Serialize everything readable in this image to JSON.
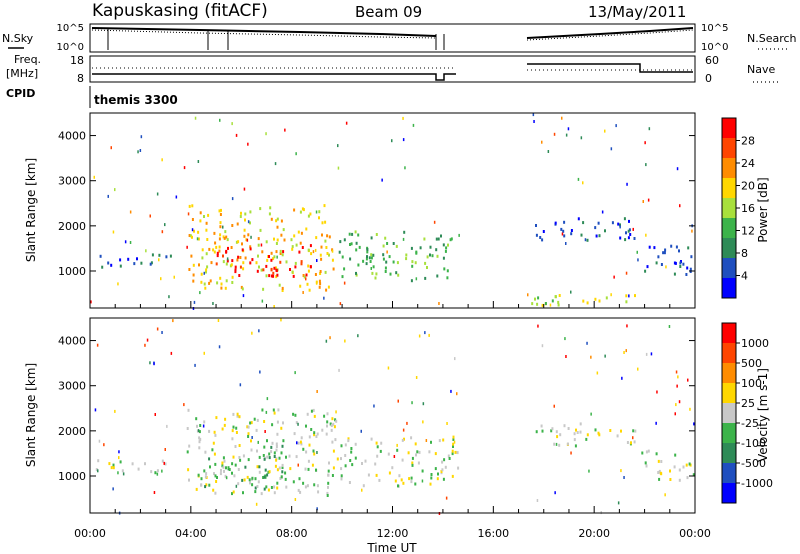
{
  "header": {
    "radar": "Kapuskasing (fitACF)",
    "beam": "Beam 09",
    "date": "13/May/2011"
  },
  "labels": {
    "nsky": "N.Sky",
    "nsearch": "N.Search",
    "freq_line1": "Freq.",
    "freq_line2": "[MHz]",
    "nave": "Nave",
    "cpid": "CPID",
    "program": "themis 3300"
  },
  "noise_axis": {
    "left_ticks": [
      "10^5",
      "10^0"
    ],
    "right_ticks": [
      "10^5",
      "10^0"
    ]
  },
  "freq_axis": {
    "left_ticks": [
      "18",
      "8"
    ],
    "right_ticks": [
      "60",
      "0"
    ]
  },
  "chart_data": [
    {
      "type": "heatmap",
      "panel": "power",
      "ylabel": "Slant Range [km]",
      "colorbar_label": "Power [dB]",
      "colorbar_ticks": [
        "28",
        "24",
        "20",
        "16",
        "12",
        "8",
        "4"
      ],
      "colors": [
        "#0000ff",
        "#1f4fbf",
        "#2e8b57",
        "#3cb34a",
        "#a8e03c",
        "#ffd700",
        "#ff8c00",
        "#ff4500",
        "#ff0000"
      ],
      "y_ticks": [
        "4000",
        "3000",
        "2000",
        "1000"
      ],
      "ylim": [
        180,
        4500
      ],
      "regions": [
        {
          "t0": 0.0,
          "t1": 3.2,
          "r0": 1100,
          "r1": 1400,
          "level": 1
        },
        {
          "t0": 3.8,
          "t1": 9.8,
          "r0": 600,
          "r1": 2500,
          "level": 5
        },
        {
          "t0": 4.8,
          "t1": 8.8,
          "r0": 900,
          "r1": 1600,
          "level": 8
        },
        {
          "t0": 9.8,
          "t1": 14.6,
          "r0": 800,
          "r1": 1900,
          "level": 3
        },
        {
          "t0": 17.4,
          "t1": 21.6,
          "r0": 1700,
          "r1": 2200,
          "level": 1
        },
        {
          "t0": 17.4,
          "t1": 21.6,
          "r0": 200,
          "r1": 500,
          "level": 4
        },
        {
          "t0": 21.8,
          "t1": 24.0,
          "r0": 900,
          "r1": 1600,
          "level": 1
        }
      ]
    },
    {
      "type": "heatmap",
      "panel": "velocity",
      "ylabel": "Slant Range [km]",
      "colorbar_label": "Velocity [m s-1]",
      "colorbar_ticks": [
        "1000",
        "500",
        "100",
        "25",
        "-25",
        "-100",
        "-500",
        "-1000"
      ],
      "colors": [
        "#0000ff",
        "#1f4fbf",
        "#2e8b57",
        "#3cb34a",
        "#c8c8c8",
        "#ffd700",
        "#ff8c00",
        "#ff4500",
        "#ff0000"
      ],
      "y_ticks": [
        "4000",
        "3000",
        "2000",
        "1000"
      ],
      "ylim": [
        180,
        4500
      ],
      "regions": [
        {
          "t0": 0.0,
          "t1": 3.2,
          "r0": 1100,
          "r1": 1400,
          "level": 4
        },
        {
          "t0": 3.8,
          "t1": 9.8,
          "r0": 600,
          "r1": 2500,
          "level": 4
        },
        {
          "t0": 4.2,
          "t1": 7.8,
          "r0": 700,
          "r1": 1700,
          "level": 3
        },
        {
          "t0": 9.8,
          "t1": 14.6,
          "r0": 800,
          "r1": 1900,
          "level": 4
        },
        {
          "t0": 17.4,
          "t1": 21.6,
          "r0": 1700,
          "r1": 2200,
          "level": 4
        },
        {
          "t0": 21.8,
          "t1": 24.0,
          "r0": 900,
          "r1": 1600,
          "level": 4
        }
      ]
    }
  ],
  "x_axis": {
    "xlabel": "Time UT",
    "ticks": [
      "00:00",
      "04:00",
      "08:00",
      "12:00",
      "16:00",
      "20:00",
      "00:00"
    ],
    "xlim": [
      0,
      24
    ]
  }
}
